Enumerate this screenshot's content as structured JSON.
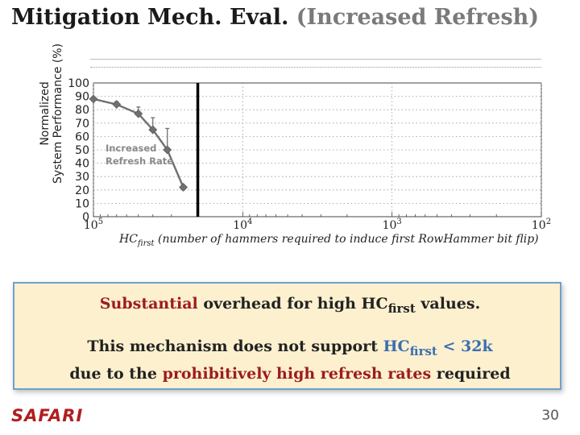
{
  "title": {
    "main": "Mitigation Mech. Eval.",
    "sub": "(Increased Refresh)"
  },
  "colors": {
    "accent_red": "#9c1c1c",
    "accent_blue": "#3a6fb0",
    "box_bg": "#fdf0cf",
    "box_border": "#6f9fd0",
    "logo": "#b01e1e"
  },
  "chart_data": {
    "type": "line",
    "title": "",
    "ylabel_line1": "Normalized",
    "ylabel_line2": "System Performance (%)",
    "xlabel_prefix": "HC",
    "xlabel_sub": "first",
    "xlabel_rest": " (number of hammers required to induce first RowHammer bit flip)",
    "xscale": "log",
    "xlim": [
      100000,
      100
    ],
    "ylim": [
      0,
      100
    ],
    "yticks": [
      0,
      10,
      20,
      30,
      40,
      50,
      60,
      70,
      80,
      90,
      100
    ],
    "xtick_base": "10",
    "xticks": [
      {
        "value": 100000,
        "exp": "5"
      },
      {
        "value": 10000,
        "exp": "4"
      },
      {
        "value": 1000,
        "exp": "3"
      },
      {
        "value": 100,
        "exp": "2"
      }
    ],
    "grid": true,
    "series": [
      {
        "x": [
          100000,
          70000,
          50000,
          40000,
          32000,
          25000
        ],
        "y": [
          88,
          84,
          77,
          65,
          50,
          22
        ],
        "err_high": [
          88,
          86,
          82,
          74,
          66,
          22
        ]
      }
    ],
    "threshold_x": 20000,
    "annotation_line1": "Increased",
    "annotation_line2": "Refresh Rate"
  },
  "message": {
    "line1_red": "Substantial",
    "line1_rest": " overhead for high HC",
    "line1_sub": "first",
    "line1_end": " values.",
    "line2_start": "This mechanism does not support ",
    "line2_hc": "HC",
    "line2_sub": "first",
    "line2_end": " < 32k",
    "line3_start": "due to the ",
    "line3_red": "prohibitively high refresh rates",
    "line3_end": " required"
  },
  "footer": {
    "logo": "SAFARI",
    "page": "30"
  }
}
